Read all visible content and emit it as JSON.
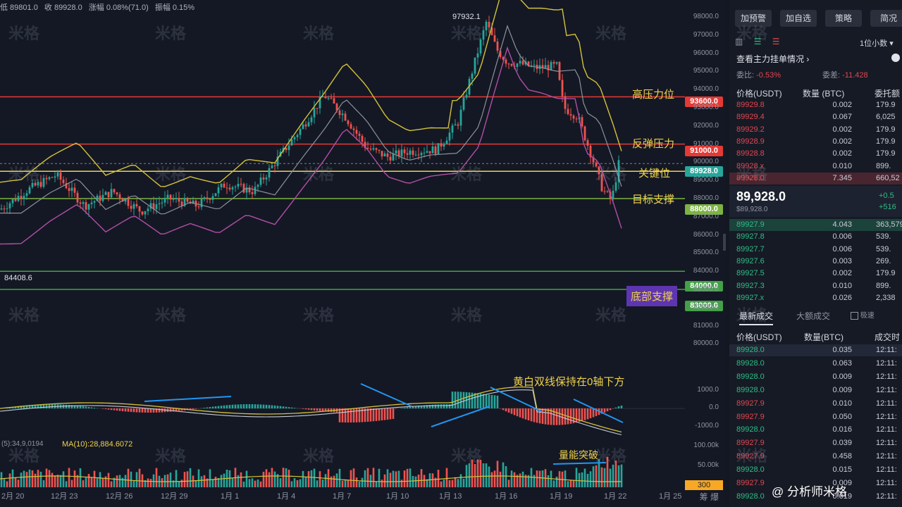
{
  "topbar": {
    "low": "低 89801.0",
    "close": "收 89928.0",
    "change": "涨幅 0.08%(71.0)",
    "amp": "振幅 0.15%"
  },
  "y_axis": [
    "98000.0",
    "97000.0",
    "96000.0",
    "95000.0",
    "94000.0",
    "93000.0",
    "92000.0",
    "91000.0",
    "90000.0",
    "89000.0",
    "88000.0",
    "87000.0",
    "86000.0",
    "85000.0",
    "84000.0",
    "83000.0",
    "82000.0",
    "81000.0",
    "80000.0"
  ],
  "price_levels": {
    "l93600": {
      "label": "93600.0",
      "color": "#e53935"
    },
    "l91000": {
      "label": "91000.0",
      "color": "#e53935"
    },
    "l89928": {
      "label": "89928.0",
      "color": "#26a69a"
    },
    "l88000": {
      "label": "88000.0",
      "color": "#7cb342"
    },
    "l84000": {
      "label": "84000.0",
      "color": "#43a047"
    },
    "l83000": {
      "label": "83000.0",
      "color": "#43a047"
    }
  },
  "annotations": {
    "high_pressure": "高压力位",
    "rebound_pressure": "反弹压力",
    "key_level": "关键位",
    "target_support": "目标支撑",
    "bottom_support": "底部支撑",
    "macd_note": "黄白双线保持在0轴下方",
    "volume_note": "量能突破",
    "peak": "97932.1",
    "low_mark": "84408.6"
  },
  "macd_axis": [
    "1000.0",
    "0.0",
    "-1000.0"
  ],
  "vol_axis": [
    "100.00k",
    "50.00k"
  ],
  "vol_badge": "300",
  "ma_label": "MA(10):28,884.6072",
  "ma5_label": "(5):34,9,0194",
  "x_axis": [
    "2月 20",
    "12月 23",
    "12月 26",
    "12月 29",
    "1月 1",
    "1月 4",
    "1月 7",
    "1月 10",
    "1月 13",
    "1月 16",
    "1月 19",
    "1月 22",
    "1月 25"
  ],
  "footer_right": "筹 爆",
  "watermark": "米格",
  "credit": "@ 分析师米格",
  "side": {
    "buttons": [
      "加预警",
      "加自选",
      "策略",
      "简况"
    ],
    "decimal": "1位小数",
    "main_order": "查看主力挂单情况",
    "ratio_label": "委比:",
    "ratio_val": "-0.53%",
    "diff_label": "委差:",
    "diff_val": "-11.428",
    "book_headers": [
      "价格(USDT)",
      "数量 (BTC)",
      "委托额"
    ],
    "asks": [
      {
        "p": "89929.8",
        "q": "0.002",
        "t": "179.9"
      },
      {
        "p": "89929.4",
        "q": "0.067",
        "t": "6,025"
      },
      {
        "p": "89929.2",
        "q": "0.002",
        "t": "179.9"
      },
      {
        "p": "89928.9",
        "q": "0.002",
        "t": "179.9"
      },
      {
        "p": "89928.8",
        "q": "0.002",
        "t": "179.9"
      },
      {
        "p": "89928.x",
        "q": "0.010",
        "t": "899."
      },
      {
        "p": "89928.0",
        "q": "7.345",
        "t": "660,52"
      }
    ],
    "last_price": "89,928.0",
    "last_price_sub": "$89,928.0",
    "last_change1": "+0.5",
    "last_change2": "+516",
    "bids": [
      {
        "p": "89927.9",
        "q": "4.043",
        "t": "363,579"
      },
      {
        "p": "89927.8",
        "q": "0.006",
        "t": "539."
      },
      {
        "p": "89927.7",
        "q": "0.006",
        "t": "539."
      },
      {
        "p": "89927.6",
        "q": "0.003",
        "t": "269."
      },
      {
        "p": "89927.5",
        "q": "0.002",
        "t": "179.9"
      },
      {
        "p": "89927.3",
        "q": "0.010",
        "t": "899."
      },
      {
        "p": "89927.x",
        "q": "0.026",
        "t": "2,338"
      }
    ],
    "trade_tabs": [
      "最新成交",
      "大额成交",
      "极速"
    ],
    "trade_headers": [
      "价格(USDT)",
      "数量(BTC)",
      "成交时间"
    ],
    "trades": [
      {
        "p": "89928.0",
        "q": "0.035",
        "t": "12:11:",
        "c": "green"
      },
      {
        "p": "89928.0",
        "q": "0.063",
        "t": "12:11:",
        "c": "green"
      },
      {
        "p": "89928.0",
        "q": "0.009",
        "t": "12:11:",
        "c": "green"
      },
      {
        "p": "89928.0",
        "q": "0.009",
        "t": "12:11:",
        "c": "green"
      },
      {
        "p": "89927.9",
        "q": "0.010",
        "t": "12:11:",
        "c": "red"
      },
      {
        "p": "89927.9",
        "q": "0.050",
        "t": "12:11:",
        "c": "red"
      },
      {
        "p": "89928.0",
        "q": "0.016",
        "t": "12:11:",
        "c": "green"
      },
      {
        "p": "89927.9",
        "q": "0.039",
        "t": "12:11:",
        "c": "red"
      },
      {
        "p": "89927.9",
        "q": "0.458",
        "t": "12:11:",
        "c": "red"
      },
      {
        "p": "89928.0",
        "q": "0.015",
        "t": "12:11:",
        "c": "green"
      },
      {
        "p": "89927.9",
        "q": "0.009",
        "t": "12:11:",
        "c": "red"
      },
      {
        "p": "89928.0",
        "q": "0.019",
        "t": "12:11:",
        "c": "green"
      }
    ]
  }
}
